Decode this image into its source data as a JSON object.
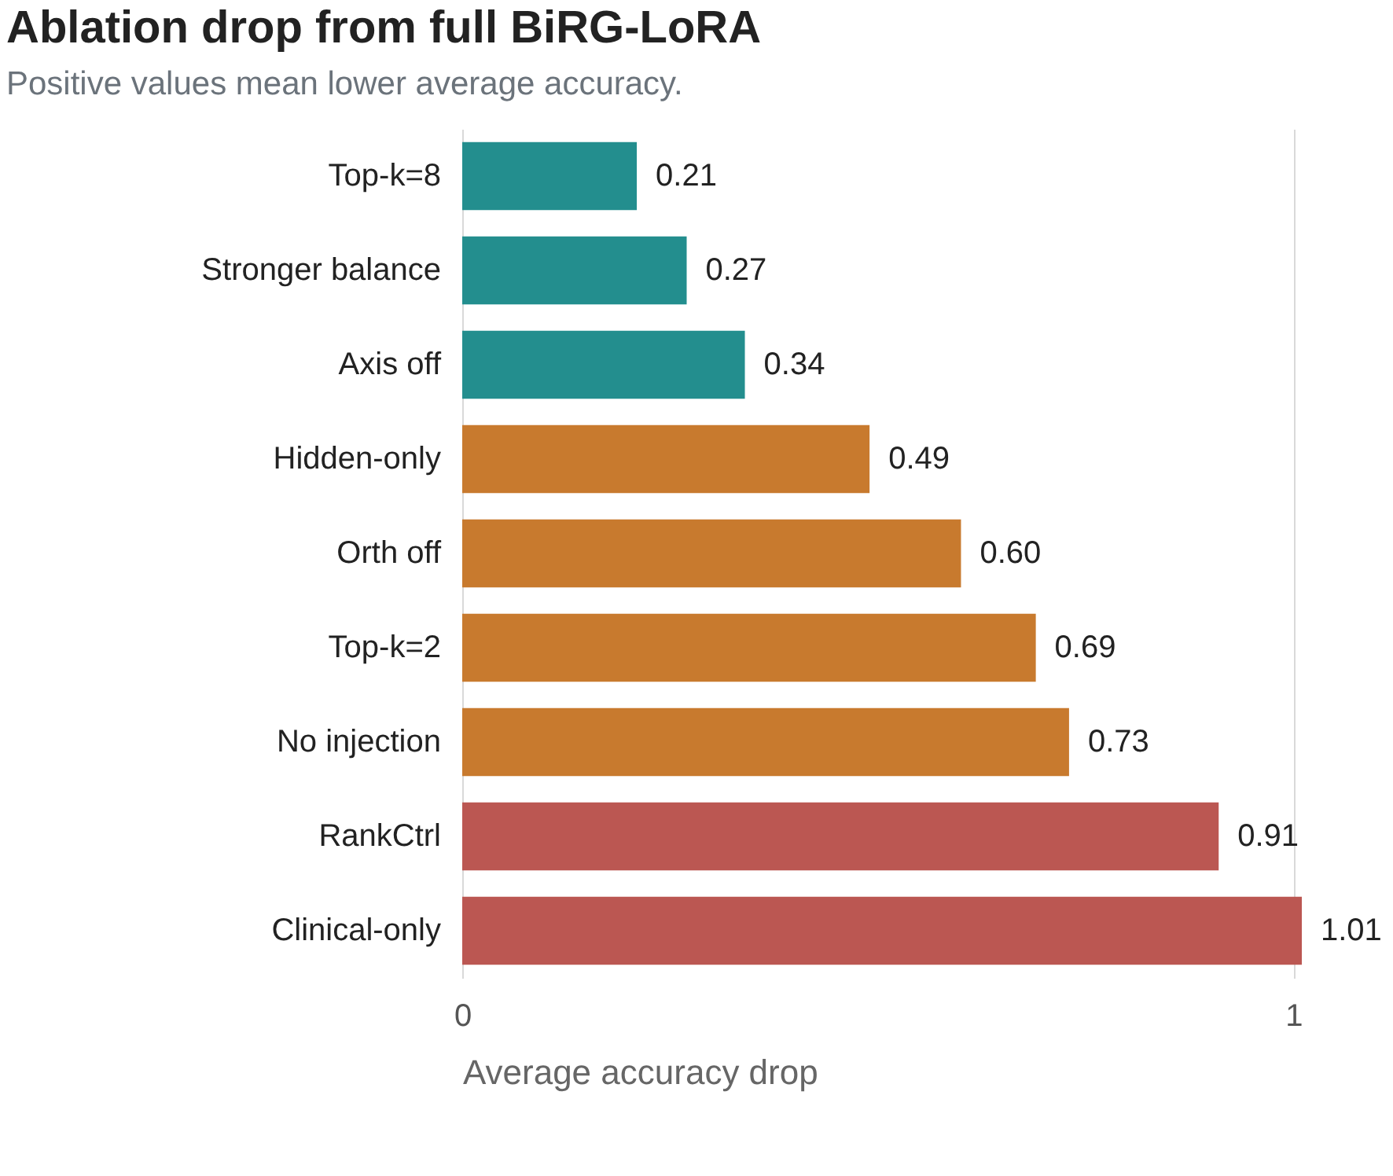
{
  "chart_data": {
    "type": "bar",
    "orientation": "horizontal",
    "title": "Ablation drop from full BiRG-LoRA",
    "subtitle": "Positive values mean lower average accuracy.",
    "xlabel": "Average accuracy drop",
    "categories": [
      "Top-k=8",
      "Stronger balance",
      "Axis off",
      "Hidden-only",
      "Orth off",
      "Top-k=2",
      "No injection",
      "RankCtrl",
      "Clinical-only"
    ],
    "values": [
      0.21,
      0.27,
      0.34,
      0.49,
      0.6,
      0.69,
      0.73,
      0.91,
      1.01
    ],
    "colors": [
      "#238e8e",
      "#238e8e",
      "#238e8e",
      "#c87a2e",
      "#c87a2e",
      "#c87a2e",
      "#c87a2e",
      "#bb5752",
      "#bb5752"
    ],
    "value_labels": [
      "0.21",
      "0.27",
      "0.34",
      "0.49",
      "0.60",
      "0.69",
      "0.73",
      "0.91",
      "1.01"
    ],
    "xlim": [
      0,
      1.01
    ],
    "xticks": [
      0,
      1
    ],
    "grid": "x"
  }
}
